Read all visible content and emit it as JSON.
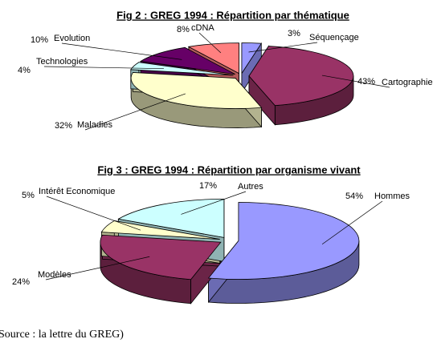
{
  "chart_data": [
    {
      "type": "pie3d",
      "title": "Fig 2 : GREG 1994 : Répartition par thématique",
      "categories": [
        "Séquençage",
        "Cartographie",
        "Maladies",
        "Technologies",
        "Evolution",
        "cDNA"
      ],
      "values": [
        3,
        43,
        32,
        4,
        10,
        8
      ],
      "value_labels": [
        "3%",
        "43%",
        "32%",
        "4%",
        "10%",
        "8%"
      ],
      "colors": [
        "#9999ff",
        "#993366",
        "#ffffcc",
        "#ccffff",
        "#660066",
        "#ff8080"
      ]
    },
    {
      "type": "pie3d",
      "title": "Fig 3 : GREG 1994 : Répartition par organisme vivant",
      "categories": [
        "Hommes",
        "Modèles",
        "Intérêt Economique",
        "Autres"
      ],
      "values": [
        54,
        24,
        5,
        17
      ],
      "value_labels": [
        "54%",
        "24%",
        "5%",
        "17%"
      ],
      "colors": [
        "#9999ff",
        "#993366",
        "#ffffcc",
        "#ccffff"
      ]
    }
  ],
  "source": "Source : la lettre du GREG)"
}
